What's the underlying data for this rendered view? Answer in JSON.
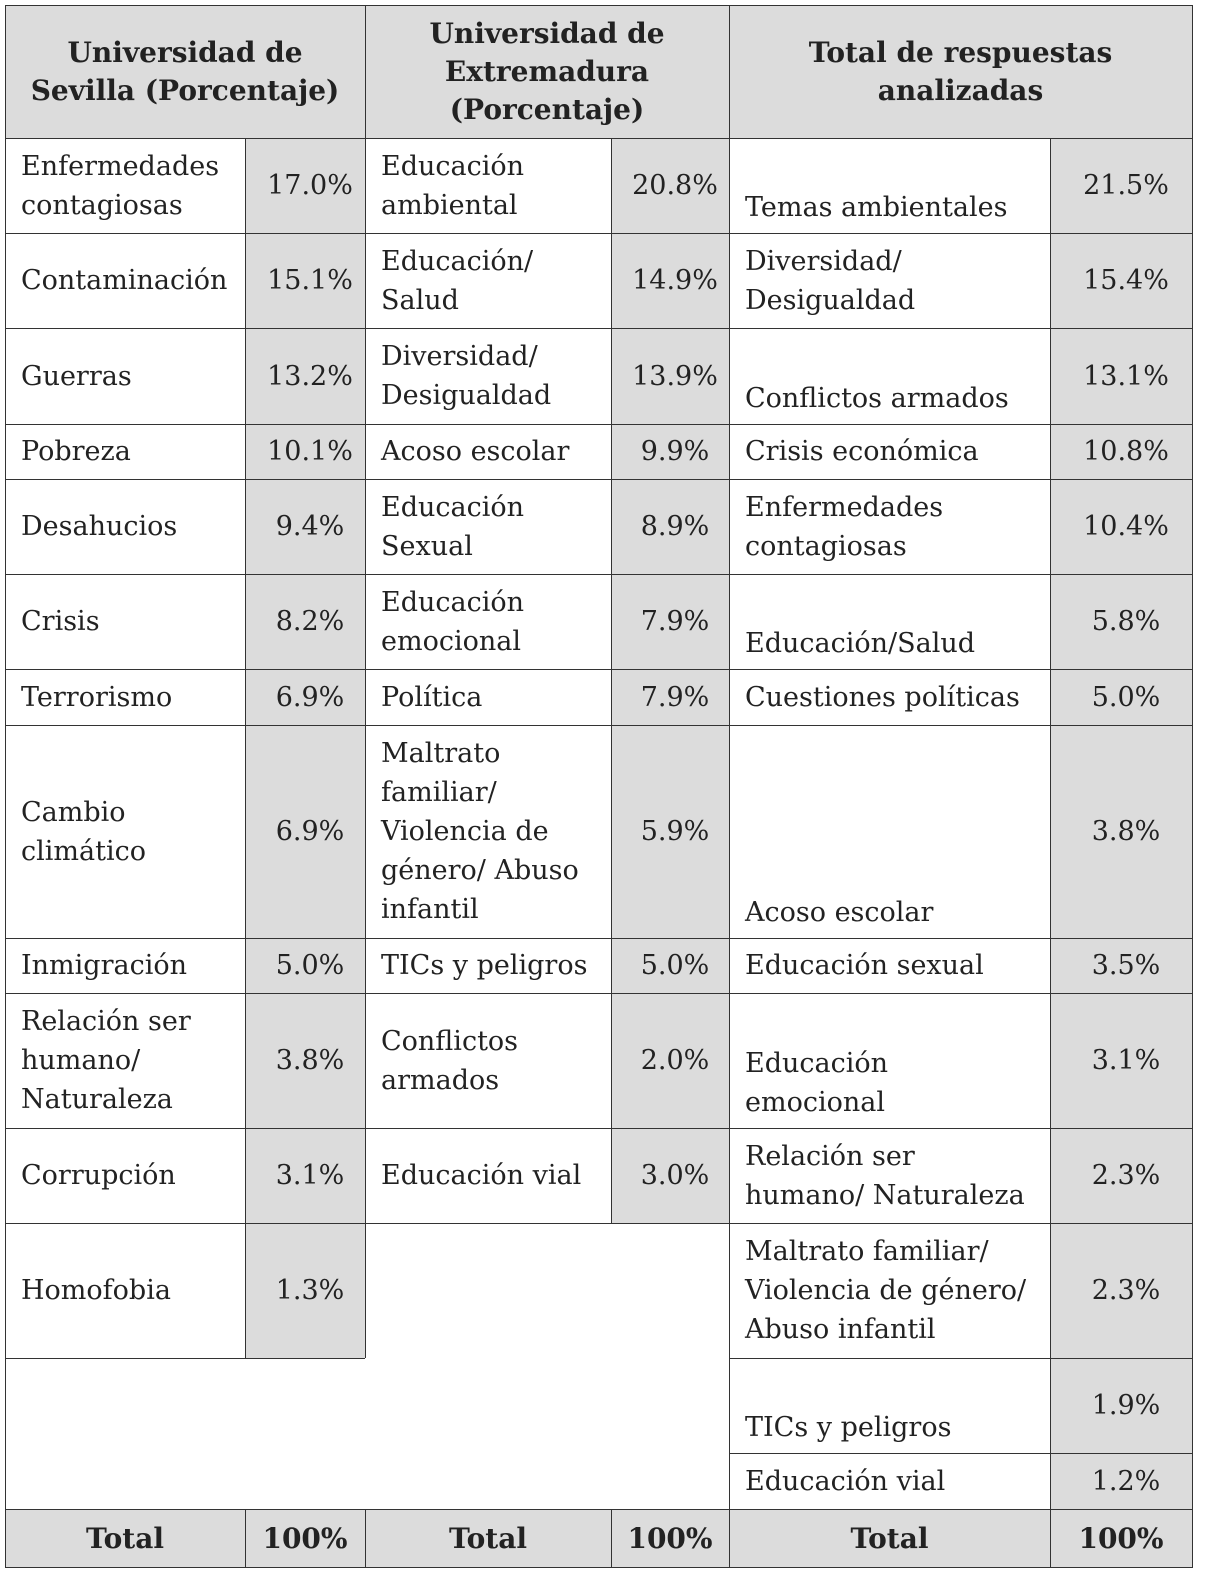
{
  "headers": {
    "sevilla": "Universidad de Sevilla (Porcentaje)",
    "extremadura": "Universidad de Extremadura (Porcentaje)",
    "total": "Total de respuestas analizadas"
  },
  "sevilla": [
    {
      "label": "Enfermedades contagiosas",
      "value": "17.0%"
    },
    {
      "label": "Contaminación",
      "value": "15.1%"
    },
    {
      "label": "Guerras",
      "value": "13.2%"
    },
    {
      "label": "Pobreza",
      "value": "10.1%"
    },
    {
      "label": "Desahucios",
      "value": "9.4%"
    },
    {
      "label": "Crisis",
      "value": "8.2%"
    },
    {
      "label": "Terrorismo",
      "value": "6.9%"
    },
    {
      "label": "Cambio climático",
      "value": "6.9%"
    },
    {
      "label": "Inmigración",
      "value": "5.0%"
    },
    {
      "label": "Relación ser humano/ Naturaleza",
      "value": "3.8%"
    },
    {
      "label": "Corrupción",
      "value": "3.1%"
    },
    {
      "label": "Homofobia",
      "value": "1.3%"
    }
  ],
  "extremadura": [
    {
      "label": "Educación ambiental",
      "value": "20.8%"
    },
    {
      "label": "Educación/ Salud",
      "value": "14.9%"
    },
    {
      "label": "Diversidad/ Desigualdad",
      "value": "13.9%"
    },
    {
      "label": "Acoso escolar",
      "value": "9.9%"
    },
    {
      "label": "Educación Sexual",
      "value": "8.9%"
    },
    {
      "label": "Educación emocional",
      "value": "7.9%"
    },
    {
      "label": "Política",
      "value": "7.9%"
    },
    {
      "label": "Maltrato familiar/ Violencia de género/ Abuso infantil",
      "value": "5.9%"
    },
    {
      "label": "TICs y peligros",
      "value": "5.0%"
    },
    {
      "label": "Conflictos armados",
      "value": "2.0%"
    },
    {
      "label": "Educación vial",
      "value": "3.0%"
    }
  ],
  "total": [
    {
      "label": "Temas ambientales",
      "value": "21.5%"
    },
    {
      "label": "Diversidad/ Desigualdad",
      "value": "15.4%"
    },
    {
      "label": "Conflictos armados",
      "value": "13.1%"
    },
    {
      "label": "Crisis económica",
      "value": "10.8%"
    },
    {
      "label": "Enfermedades contagiosas",
      "value": "10.4%"
    },
    {
      "label": "Educación/Salud",
      "value": "5.8%"
    },
    {
      "label": "Cuestiones políticas",
      "value": "5.0%"
    },
    {
      "label": "Acoso escolar",
      "value": "3.8%"
    },
    {
      "label": "Educación sexual",
      "value": "3.5%"
    },
    {
      "label": "Educación emocional",
      "value": "3.1%"
    },
    {
      "label": "Relación ser humano/ Naturaleza",
      "value": "2.3%"
    },
    {
      "label": "Maltrato familiar/ Violencia de género/ Abuso infantil",
      "value": "2.3%"
    },
    {
      "label": "TICs y peligros",
      "value": "1.9%"
    },
    {
      "label": "Educación vial",
      "value": "1.2%"
    }
  ],
  "footer": {
    "sevilla_label": "Total",
    "sevilla_value": "100%",
    "extremadura_label": "Total",
    "extremadura_value": "100%",
    "total_label": "Total",
    "total_value": "100%"
  }
}
